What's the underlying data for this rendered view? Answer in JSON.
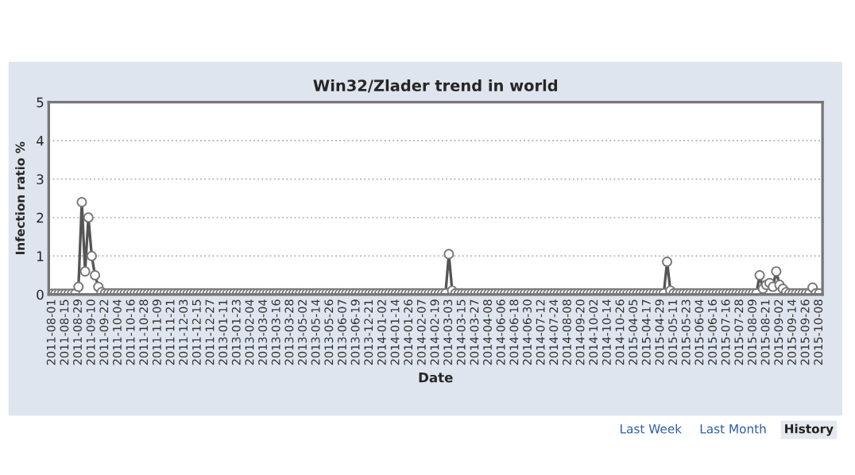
{
  "chart_data": {
    "type": "line",
    "title": "Win32/Zlader trend in world",
    "xlabel": "Date",
    "ylabel": "Infection ratio %",
    "categories": [
      "2011-08-01",
      null,
      null,
      null,
      "2011-08-15",
      null,
      null,
      null,
      "2011-08-29",
      null,
      null,
      null,
      "2011-09-10",
      null,
      null,
      null,
      "2011-09-22",
      null,
      null,
      null,
      "2011-10-04",
      null,
      null,
      null,
      "2011-10-16",
      null,
      null,
      null,
      "2011-10-28",
      null,
      null,
      null,
      "2011-11-09",
      null,
      null,
      null,
      "2011-11-21",
      null,
      null,
      null,
      "2011-12-03",
      null,
      null,
      null,
      "2011-12-15",
      null,
      null,
      null,
      "2011-12-27",
      null,
      null,
      null,
      "2013-01-11",
      null,
      null,
      null,
      "2013-01-23",
      null,
      null,
      null,
      "2013-02-04",
      null,
      null,
      null,
      "2013-03-04",
      null,
      null,
      null,
      "2013-03-16",
      null,
      null,
      null,
      "2013-03-28",
      null,
      null,
      null,
      "2013-05-02",
      null,
      null,
      null,
      "2013-05-14",
      null,
      null,
      null,
      "2013-05-26",
      null,
      null,
      null,
      "2013-06-07",
      null,
      null,
      null,
      "2013-06-19",
      null,
      null,
      null,
      "2013-12-21",
      null,
      null,
      null,
      "2014-01-02",
      null,
      null,
      null,
      "2014-01-14",
      null,
      null,
      null,
      "2014-01-26",
      null,
      null,
      null,
      "2014-02-07",
      null,
      null,
      null,
      "2014-02-19",
      null,
      null,
      null,
      "2014-03-03",
      null,
      null,
      null,
      "2014-03-15",
      null,
      null,
      null,
      "2014-03-27",
      null,
      null,
      null,
      "2014-04-08",
      null,
      null,
      null,
      "2014-06-06",
      null,
      null,
      null,
      "2014-06-18",
      null,
      null,
      null,
      "2014-06-30",
      null,
      null,
      null,
      "2014-07-12",
      null,
      null,
      null,
      "2014-07-24",
      null,
      null,
      null,
      "2014-08-08",
      null,
      null,
      null,
      "2014-09-20",
      null,
      null,
      null,
      "2014-10-02",
      null,
      null,
      null,
      "2014-10-14",
      null,
      null,
      null,
      "2014-10-26",
      null,
      null,
      null,
      "2015-04-05",
      null,
      null,
      null,
      "2015-04-17",
      null,
      null,
      null,
      "2015-04-29",
      null,
      null,
      null,
      "2015-05-11",
      null,
      null,
      null,
      "2015-05-23",
      null,
      null,
      null,
      "2015-06-04",
      null,
      null,
      null,
      "2015-06-16",
      null,
      null,
      null,
      "2015-07-16",
      null,
      null,
      null,
      "2015-07-28",
      null,
      null,
      null,
      "2015-08-09",
      null,
      null,
      null,
      "2015-08-21",
      null,
      null,
      null,
      "2015-09-02",
      null,
      null,
      null,
      "2015-09-14",
      null,
      null,
      null,
      "2015-09-26",
      null,
      null,
      null,
      "2015-10-08"
    ],
    "series": [
      {
        "color": "#555555",
        "values": [
          0.02,
          0.02,
          0.02,
          0.02,
          0.02,
          0.02,
          0.02,
          0.02,
          0.2,
          2.4,
          0.6,
          2.0,
          1.0,
          0.5,
          0.2,
          0.06,
          0.03,
          0.03,
          0.03,
          0.03,
          0.03,
          0.03,
          0.03,
          0.03,
          0.03,
          0.03,
          0.03,
          0.03,
          0.03,
          0.03,
          0.03,
          0.03,
          0.03,
          0.03,
          0.03,
          0.03,
          0.03,
          0.03,
          0.03,
          0.03,
          0.03,
          0.03,
          0.03,
          0.03,
          0.03,
          0.03,
          0.03,
          0.03,
          0.03,
          0.03,
          0.03,
          0.03,
          0.03,
          0.03,
          0.03,
          0.03,
          0.03,
          0.03,
          0.03,
          0.03,
          0.03,
          0.03,
          0.03,
          0.03,
          0.03,
          0.03,
          0.03,
          0.03,
          0.03,
          0.03,
          0.03,
          0.03,
          0.03,
          0.03,
          0.03,
          0.03,
          0.03,
          0.03,
          0.03,
          0.03,
          0.03,
          0.03,
          0.03,
          0.03,
          0.03,
          0.03,
          0.03,
          0.03,
          0.03,
          0.03,
          0.03,
          0.03,
          0.03,
          0.03,
          0.03,
          0.03,
          0.03,
          0.03,
          0.03,
          0.03,
          0.03,
          0.03,
          0.03,
          0.03,
          0.03,
          0.03,
          0.03,
          0.03,
          0.03,
          0.03,
          0.03,
          0.03,
          0.03,
          0.03,
          0.03,
          0.03,
          0.03,
          0.03,
          0.03,
          0.03,
          1.05,
          0.1,
          0.03,
          0.03,
          0.03,
          0.03,
          0.03,
          0.03,
          0.03,
          0.03,
          0.03,
          0.03,
          0.03,
          0.03,
          0.03,
          0.03,
          0.03,
          0.03,
          0.03,
          0.03,
          0.03,
          0.03,
          0.03,
          0.03,
          0.03,
          0.03,
          0.03,
          0.03,
          0.03,
          0.03,
          0.03,
          0.03,
          0.03,
          0.03,
          0.03,
          0.03,
          0.03,
          0.03,
          0.03,
          0.03,
          0.03,
          0.03,
          0.03,
          0.03,
          0.03,
          0.03,
          0.03,
          0.03,
          0.03,
          0.03,
          0.03,
          0.03,
          0.03,
          0.03,
          0.03,
          0.03,
          0.03,
          0.03,
          0.03,
          0.03,
          0.03,
          0.03,
          0.03,
          0.03,
          0.03,
          0.03,
          0.85,
          0.1,
          0.03,
          0.03,
          0.03,
          0.03,
          0.03,
          0.03,
          0.03,
          0.03,
          0.03,
          0.03,
          0.03,
          0.03,
          0.03,
          0.03,
          0.03,
          0.03,
          0.03,
          0.03,
          0.03,
          0.03,
          0.03,
          0.03,
          0.03,
          0.03,
          0.03,
          0.03,
          0.5,
          0.15,
          0.25,
          0.3,
          0.2,
          0.6,
          0.25,
          0.15,
          0.06,
          0.03,
          0.03,
          0.03,
          0.03,
          0.03,
          0.03,
          0.03,
          0.18,
          0.03,
          0.03
        ]
      }
    ],
    "ylim": [
      0,
      5
    ],
    "yticks": [
      0,
      1,
      2,
      3,
      4,
      5
    ],
    "grid": "y",
    "marker": "circle",
    "line_style": "solid",
    "annotations": [
      "Last Week",
      "Last Month",
      "History"
    ]
  }
}
